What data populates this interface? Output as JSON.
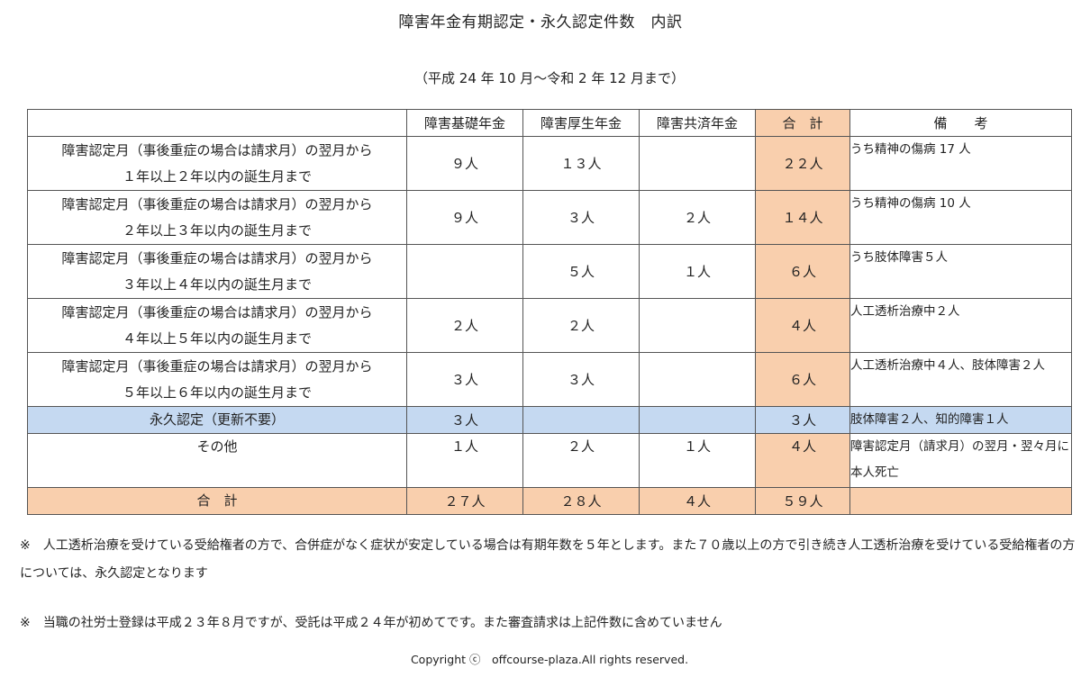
{
  "title": "障害年金有期認定・永久認定件数　内訳",
  "period": "（平成 24 年 10 月～令和 2 年 12 月まで）",
  "table": {
    "headers": [
      "",
      "障害基礎年金",
      "障害厚生年金",
      "障害共済年金",
      "合　計",
      "備　　考"
    ],
    "rows": [
      {
        "label1": "障害認定月（事後重症の場合は請求月）の翌月から",
        "label2": "１年以上２年以内の誕生月まで",
        "kiso": "９人",
        "kosei": "１３人",
        "kyosai": "",
        "total": "２２人",
        "note": "うち精神の傷病 17 人"
      },
      {
        "label1": "障害認定月（事後重症の場合は請求月）の翌月から",
        "label2": "２年以上３年以内の誕生月まで",
        "kiso": "９人",
        "kosei": "３人",
        "kyosai": "２人",
        "total": "１４人",
        "note": "うち精神の傷病 10 人"
      },
      {
        "label1": "障害認定月（事後重症の場合は請求月）の翌月から",
        "label2": "３年以上４年以内の誕生月まで",
        "kiso": "",
        "kosei": "５人",
        "kyosai": "１人",
        "total": "６人",
        "note": "うち肢体障害５人"
      },
      {
        "label1": "障害認定月（事後重症の場合は請求月）の翌月から",
        "label2": "４年以上５年以内の誕生月まで",
        "kiso": "２人",
        "kosei": "２人",
        "kyosai": "",
        "total": "４人",
        "note": "人工透析治療中２人"
      },
      {
        "label1": "障害認定月（事後重症の場合は請求月）の翌月から",
        "label2": "５年以上６年以内の誕生月まで",
        "kiso": "３人",
        "kosei": "３人",
        "kyosai": "",
        "total": "６人",
        "note": "人工透析治療中４人、肢体障害２人"
      }
    ],
    "permanent": {
      "label": "永久認定（更新不要）",
      "kiso": "３人",
      "kosei": "",
      "kyosai": "",
      "total": "３人",
      "note": "肢体障害２人、知的障害１人"
    },
    "other": {
      "label": "その他",
      "kiso": "１人",
      "kosei": "２人",
      "kyosai": "１人",
      "total": "４人",
      "note": "障害認定月（請求月）の翌月・翌々月に本人死亡"
    },
    "sum": {
      "label": "合　計",
      "kiso": "２７人",
      "kosei": "２８人",
      "kyosai": "４人",
      "total": "５９人",
      "note": ""
    }
  },
  "footnotes": [
    "※　人工透析治療を受けている受給権者の方で、合併症がなく症状が安定している場合は有期年数を５年とします。また７０歳以上の方で引き続き人工透析治療を受けている受給権者の方については、永久認定となります",
    "※　当職の社労士登録は平成２３年８月ですが、受託は平成２４年が初めてです。また審査請求は上記件数に含めていません"
  ],
  "copyright": "Copyright ⓒ　offcourse-plaza.All rights reserved.",
  "colors": {
    "total_fill": "#f9cfad",
    "permanent_fill": "#c5d9f1"
  }
}
